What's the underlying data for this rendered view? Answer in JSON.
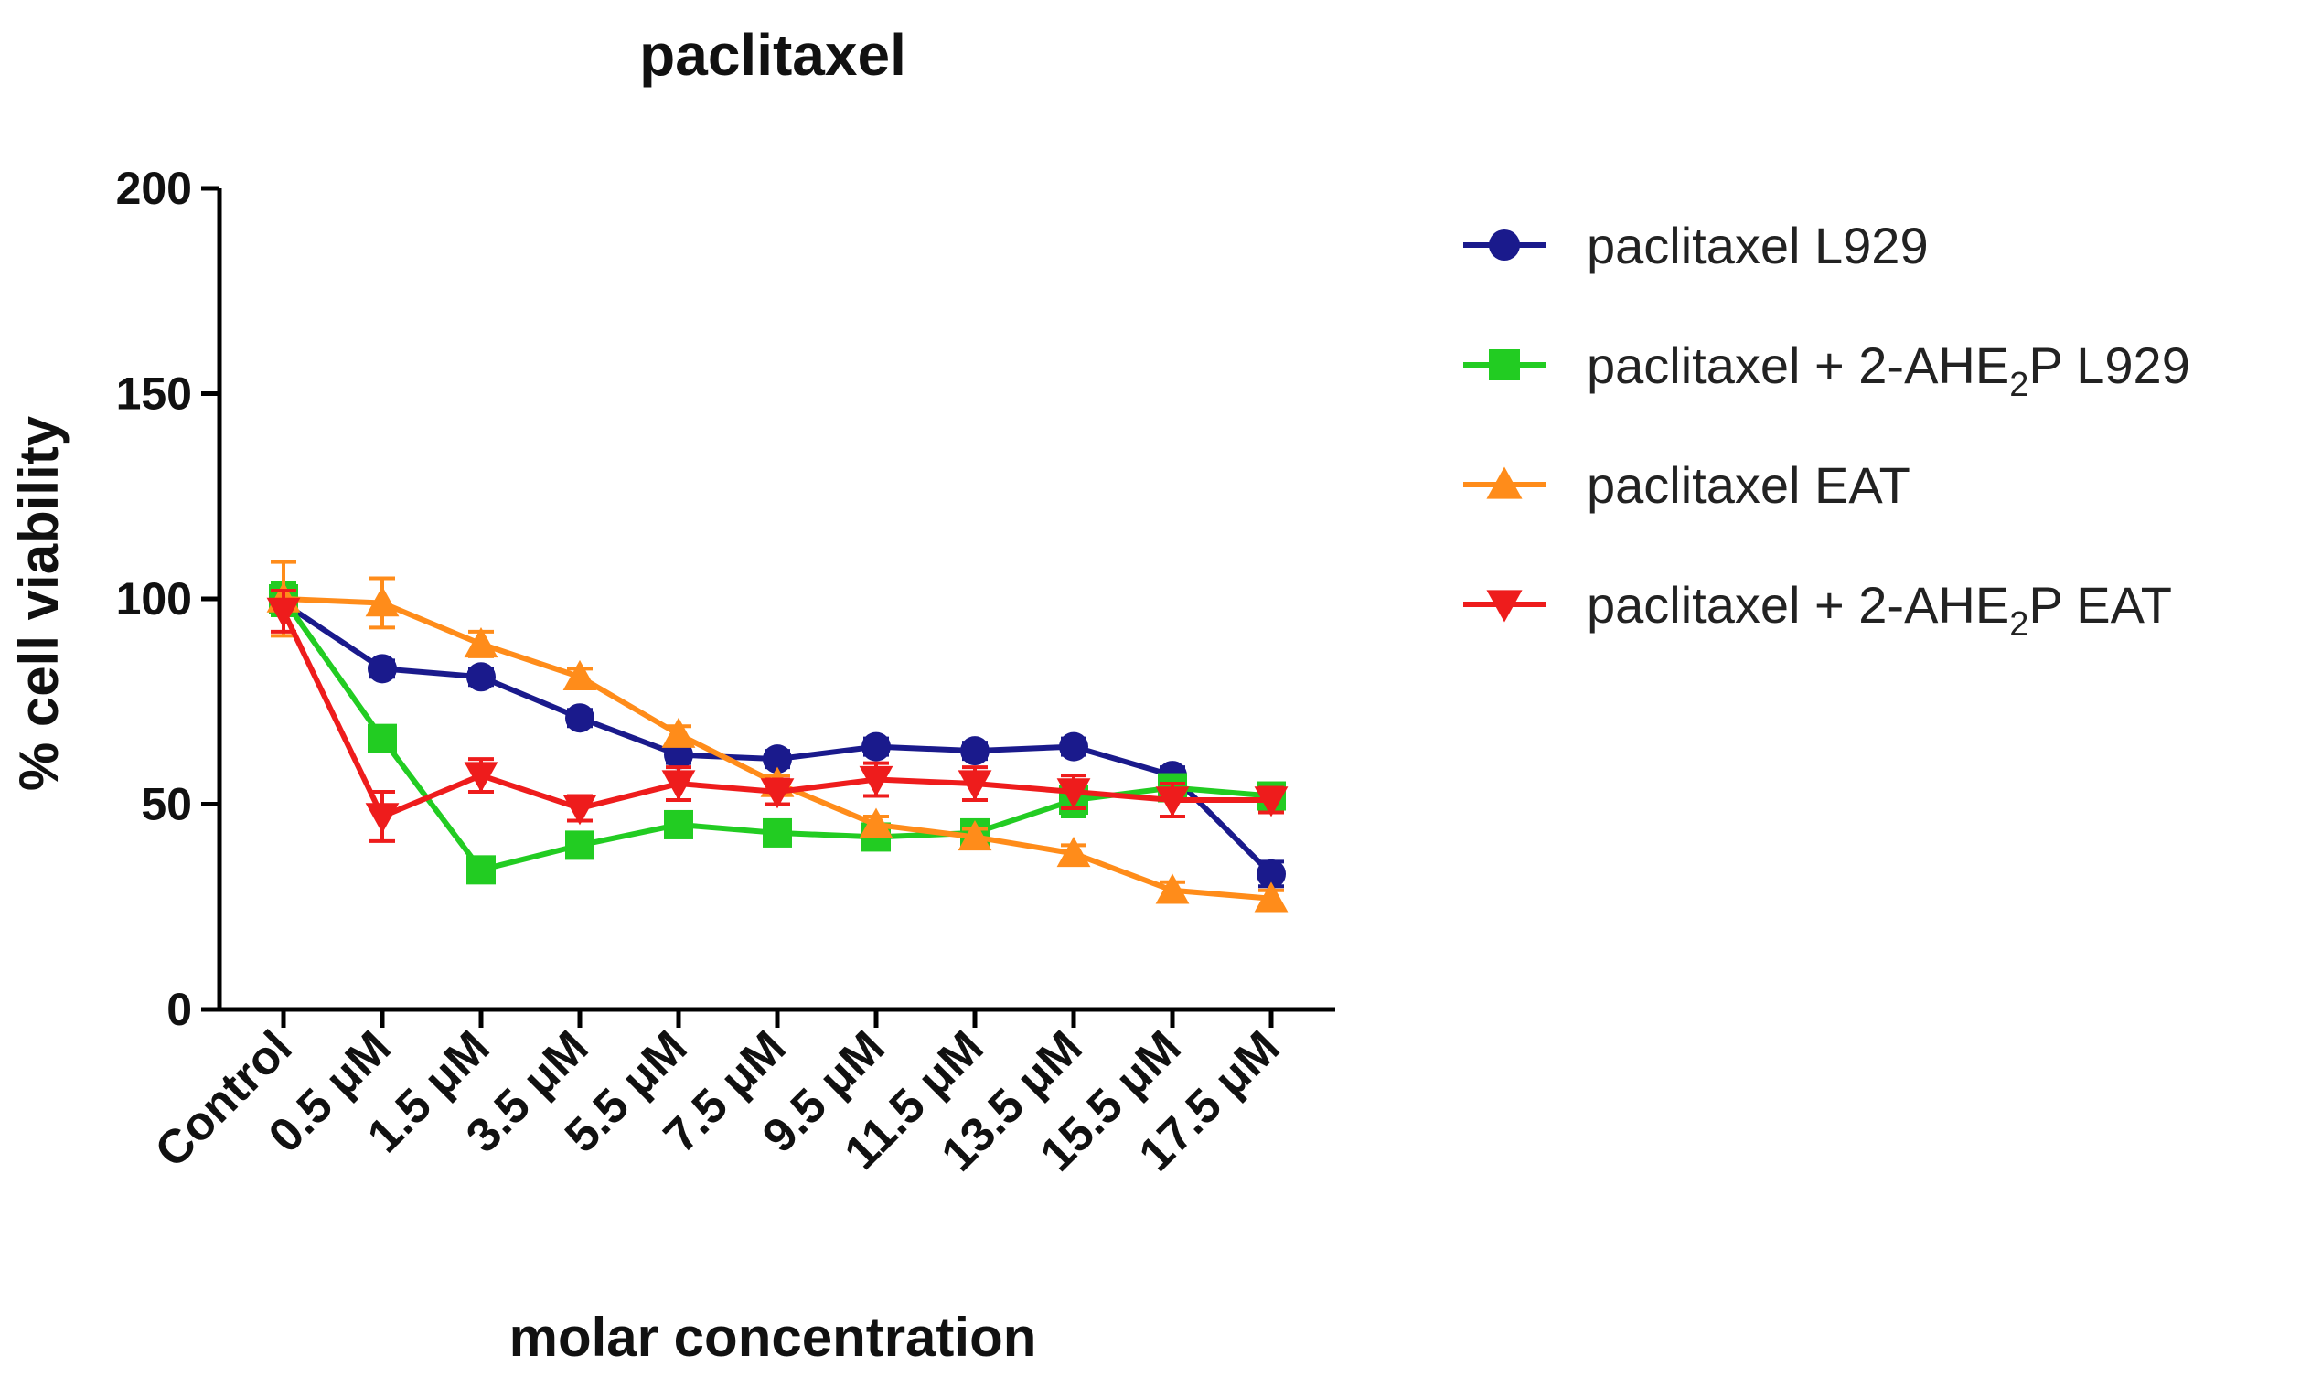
{
  "chart_data": {
    "type": "line",
    "title": "paclitaxel",
    "xlabel": "molar concentration",
    "ylabel": "% cell viability",
    "ylim": [
      0,
      200
    ],
    "yticks": [
      0,
      50,
      100,
      150,
      200
    ],
    "grid": false,
    "legend_position": "top-right",
    "categories": [
      "Control",
      "0.5 μM",
      "1.5 μM",
      "3.5 μM",
      "5.5 μM",
      "7.5 μM",
      "9.5 μM",
      "11.5 μM",
      "13.5 μM",
      "15.5 μM",
      "17.5 μM"
    ],
    "series": [
      {
        "name": "paclitaxel L929",
        "legend_main": "paclitaxel L929",
        "legend_sub": "",
        "legend_tail": "",
        "color": "#1a1a8c",
        "marker": "circle",
        "values": [
          99,
          83,
          81,
          71,
          62,
          61,
          64,
          63,
          64,
          57,
          33
        ],
        "errors": [
          3,
          2,
          2,
          2,
          2,
          2,
          2,
          2,
          2,
          2,
          3
        ]
      },
      {
        "name": "paclitaxel + 2-AHE2P L929",
        "legend_main": "paclitaxel + 2-AHE",
        "legend_sub": "2",
        "legend_tail": "P L929",
        "color": "#22cc22",
        "marker": "square",
        "values": [
          100,
          66,
          34,
          40,
          45,
          43,
          42,
          43,
          51,
          54,
          52
        ],
        "errors": [
          4,
          2,
          2,
          2,
          2,
          2,
          2,
          2,
          4,
          3,
          3
        ]
      },
      {
        "name": "paclitaxel EAT",
        "legend_main": "paclitaxel EAT",
        "legend_sub": "",
        "legend_tail": "",
        "color": "#ff8c1a",
        "marker": "triangle-up",
        "values": [
          100,
          99,
          89,
          81,
          67,
          55,
          45,
          42,
          38,
          29,
          27
        ],
        "errors": [
          9,
          6,
          3,
          2,
          2,
          2,
          2,
          2,
          2,
          2,
          2
        ]
      },
      {
        "name": "paclitaxel + 2-AHE2P EAT",
        "legend_main": "paclitaxel + 2-AHE",
        "legend_sub": "2",
        "legend_tail": "P EAT",
        "color": "#ee1c1c",
        "marker": "triangle-down",
        "values": [
          97,
          47,
          57,
          49,
          55,
          53,
          56,
          55,
          53,
          51,
          51
        ],
        "errors": [
          5,
          6,
          4,
          3,
          4,
          3,
          4,
          4,
          4,
          4,
          3
        ]
      }
    ]
  }
}
